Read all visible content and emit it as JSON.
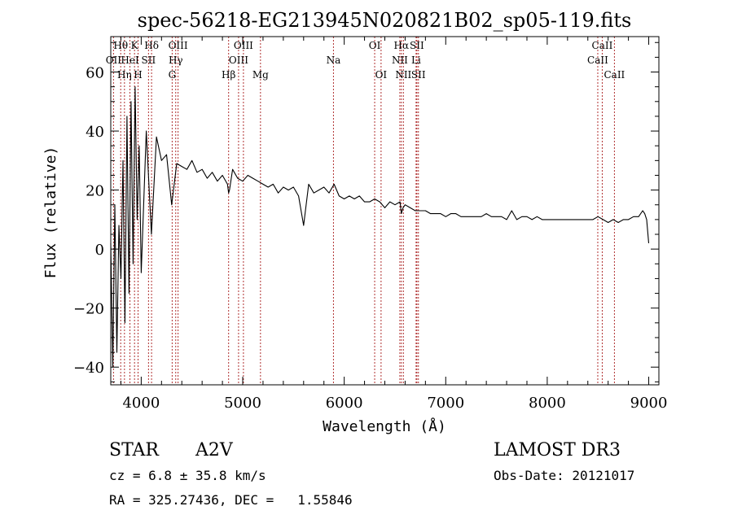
{
  "chart_data": {
    "type": "line",
    "title": "spec-56218-EG213945N020821B02_sp05-119.fits",
    "xlabel": "Wavelength (Å)",
    "ylabel": "Flux (relative)",
    "xlim": [
      3700,
      9100
    ],
    "ylim": [
      -46,
      72
    ],
    "xticks": [
      4000,
      5000,
      6000,
      7000,
      8000,
      9000
    ],
    "yticks": [
      -40,
      -20,
      0,
      20,
      40,
      60
    ],
    "grid": false,
    "series": [
      {
        "name": "spectrum",
        "x": [
          3700,
          3720,
          3740,
          3760,
          3780,
          3800,
          3820,
          3840,
          3860,
          3880,
          3900,
          3920,
          3940,
          3960,
          3980,
          4000,
          4050,
          4100,
          4150,
          4200,
          4250,
          4300,
          4350,
          4400,
          4450,
          4500,
          4550,
          4600,
          4650,
          4700,
          4750,
          4800,
          4850,
          4861,
          4870,
          4900,
          4950,
          5000,
          5050,
          5100,
          5150,
          5200,
          5250,
          5300,
          5350,
          5400,
          5450,
          5500,
          5550,
          5600,
          5650,
          5700,
          5750,
          5800,
          5850,
          5900,
          5950,
          6000,
          6050,
          6100,
          6150,
          6200,
          6250,
          6300,
          6350,
          6400,
          6450,
          6500,
          6550,
          6563,
          6580,
          6600,
          6650,
          6700,
          6750,
          6800,
          6850,
          6900,
          6950,
          7000,
          7050,
          7100,
          7150,
          7200,
          7250,
          7300,
          7350,
          7400,
          7450,
          7500,
          7550,
          7600,
          7650,
          7700,
          7750,
          7800,
          7850,
          7900,
          7950,
          8000,
          8050,
          8100,
          8150,
          8200,
          8250,
          8300,
          8350,
          8400,
          8450,
          8500,
          8550,
          8600,
          8650,
          8700,
          8750,
          8800,
          8850,
          8900,
          8940,
          8960,
          8980,
          9000
        ],
        "y": [
          2,
          -40,
          15,
          -35,
          8,
          -10,
          30,
          -25,
          45,
          -15,
          50,
          -5,
          55,
          10,
          35,
          -8,
          40,
          5,
          38,
          30,
          32,
          15,
          29,
          28,
          27,
          30,
          26,
          27,
          24,
          26,
          23,
          25,
          22,
          19,
          20,
          27,
          24,
          23,
          25,
          24,
          23,
          22,
          21,
          22,
          19,
          21,
          20,
          21,
          18,
          8,
          22,
          19,
          20,
          21,
          19,
          22,
          18,
          17,
          18,
          17,
          18,
          16,
          16,
          17,
          16,
          14,
          16,
          15,
          16,
          12,
          14,
          15,
          14,
          13,
          13,
          13,
          12,
          12,
          12,
          11,
          12,
          12,
          11,
          11,
          11,
          11,
          11,
          12,
          11,
          11,
          11,
          10,
          13,
          10,
          11,
          11,
          10,
          11,
          10,
          10,
          10,
          10,
          10,
          10,
          10,
          10,
          10,
          10,
          10,
          11,
          10,
          9,
          10,
          9,
          10,
          10,
          11,
          11,
          13,
          12,
          10,
          2
        ]
      }
    ],
    "lines": [
      {
        "label": "Hθ",
        "x": 3798,
        "row": 0
      },
      {
        "label": "OII",
        "x": 3727,
        "row": 1
      },
      {
        "label": "Hη",
        "x": 3835,
        "row": 2
      },
      {
        "label": "K",
        "x": 3934,
        "row": 0
      },
      {
        "label": "HeI",
        "x": 3889,
        "row": 1
      },
      {
        "label": "H",
        "x": 3969,
        "row": 2
      },
      {
        "label": "Hδ",
        "x": 4102,
        "row": 0
      },
      {
        "label": "SII",
        "x": 4072,
        "row": 1
      },
      {
        "label": "OIII",
        "x": 4363,
        "row": 0
      },
      {
        "label": "Hγ",
        "x": 4340,
        "row": 1
      },
      {
        "label": "G",
        "x": 4305,
        "row": 2
      },
      {
        "label": "Hβ",
        "x": 4861,
        "row": 2
      },
      {
        "label": "OIII",
        "x": 5007,
        "row": 0
      },
      {
        "label": "OIII",
        "x": 4959,
        "row": 1
      },
      {
        "label": "Mg",
        "x": 5175,
        "row": 2
      },
      {
        "label": "Na",
        "x": 5894,
        "row": 1
      },
      {
        "label": "OI",
        "x": 6300,
        "row": 0
      },
      {
        "label": "OI",
        "x": 6363,
        "row": 2
      },
      {
        "label": "Hα",
        "x": 6563,
        "row": 0
      },
      {
        "label": "SII",
        "x": 6716,
        "row": 0
      },
      {
        "label": "NII",
        "x": 6548,
        "row": 1
      },
      {
        "label": "Li",
        "x": 6708,
        "row": 1
      },
      {
        "label": "NII",
        "x": 6583,
        "row": 2
      },
      {
        "label": "SII",
        "x": 6731,
        "row": 2
      },
      {
        "label": "CaII",
        "x": 8542,
        "row": 0
      },
      {
        "label": "CaII",
        "x": 8498,
        "row": 1
      },
      {
        "label": "CaII",
        "x": 8662,
        "row": 2
      }
    ],
    "line_color": "#b03030"
  },
  "info": {
    "obj_class": "STAR",
    "subclass": "A2V",
    "survey": "LAMOST DR3",
    "cz": "cz = 6.8 ± 35.8 km/s",
    "obs_date": "Obs-Date: 20121017",
    "radec": "RA = 325.27436, DEC =   1.55846"
  }
}
